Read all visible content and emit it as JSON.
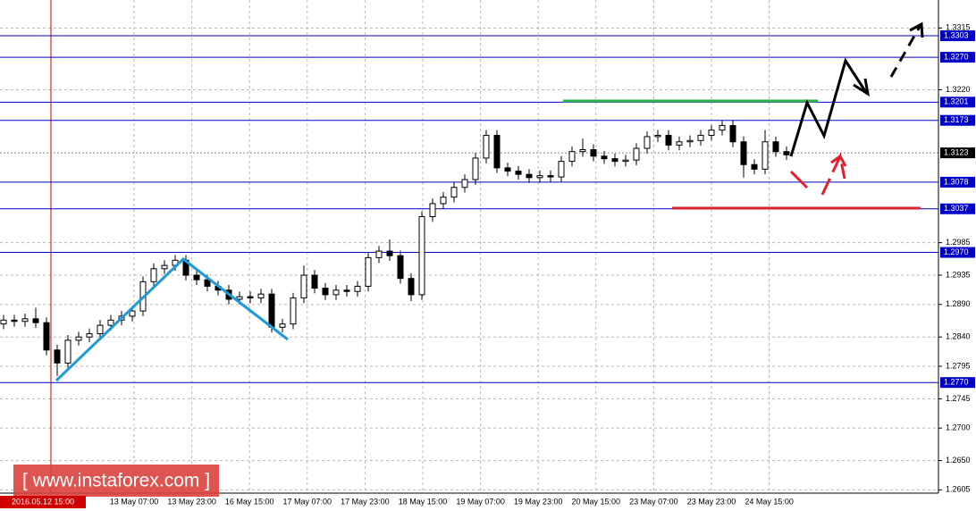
{
  "chart_data": {
    "type": "candlestick",
    "open": [
      1.286,
      1.2866,
      1.2864,
      1.2868,
      1.2862,
      1.282,
      1.28,
      1.2835,
      1.284,
      1.2845,
      1.2858,
      1.2866,
      1.2872,
      1.288,
      1.2925,
      1.2945,
      1.295,
      1.2958,
      1.2935,
      1.2928,
      1.2918,
      1.2912,
      1.2898,
      1.2902,
      1.29,
      1.2906,
      1.2855,
      1.286,
      1.29,
      1.2935,
      1.2915,
      1.2905,
      1.2912,
      1.291,
      1.2918,
      1.2962,
      1.2972,
      1.2965,
      1.293,
      1.2905,
      1.3025,
      1.3045,
      1.3055,
      1.307,
      1.3082,
      1.3115,
      1.315,
      1.31,
      1.3095,
      1.309,
      1.3085,
      1.3088,
      1.3086,
      1.311,
      1.3125,
      1.3128,
      1.3118,
      1.3114,
      1.311,
      1.3112,
      1.313,
      1.3148,
      1.315,
      1.3135,
      1.314,
      1.3142,
      1.315,
      1.3158,
      1.3165,
      1.314,
      1.3105,
      1.3098,
      1.314,
      1.3125
    ],
    "high": [
      1.2874,
      1.2874,
      1.2876,
      1.2885,
      1.287,
      1.2828,
      1.2843,
      1.2848,
      1.2853,
      1.2866,
      1.2874,
      1.288,
      1.2888,
      1.2933,
      1.2953,
      1.2958,
      1.2966,
      1.2966,
      1.2943,
      1.2936,
      1.2926,
      1.292,
      1.291,
      1.291,
      1.2914,
      1.2914,
      1.2868,
      1.2908,
      1.295,
      1.2943,
      1.2923,
      1.292,
      1.292,
      1.2926,
      1.297,
      1.298,
      1.299,
      1.2973,
      1.2938,
      1.3033,
      1.3053,
      1.3063,
      1.3078,
      1.309,
      1.3123,
      1.3158,
      1.3158,
      1.3108,
      1.3103,
      1.3098,
      1.3096,
      1.3096,
      1.3118,
      1.3133,
      1.3145,
      1.3136,
      1.3126,
      1.3122,
      1.312,
      1.3138,
      1.3156,
      1.3158,
      1.3158,
      1.3148,
      1.315,
      1.3158,
      1.3166,
      1.3173,
      1.3173,
      1.3148,
      1.3113,
      1.3158,
      1.3148,
      1.3133
    ],
    "low": [
      1.2852,
      1.2856,
      1.2856,
      1.2854,
      1.2812,
      1.278,
      1.2792,
      1.2827,
      1.2832,
      1.2837,
      1.285,
      1.2858,
      1.2864,
      1.2872,
      1.2917,
      1.2937,
      1.2942,
      1.2927,
      1.292,
      1.291,
      1.2904,
      1.289,
      1.289,
      1.2892,
      1.2892,
      1.2847,
      1.2847,
      1.2852,
      1.2892,
      1.2907,
      1.2897,
      1.2897,
      1.2902,
      1.2902,
      1.291,
      1.2954,
      1.2957,
      1.2922,
      1.2895,
      1.2897,
      1.3017,
      1.3037,
      1.3047,
      1.3062,
      1.3074,
      1.3107,
      1.3092,
      1.3087,
      1.3082,
      1.3077,
      1.3077,
      1.3078,
      1.3078,
      1.3102,
      1.3117,
      1.311,
      1.3106,
      1.3102,
      1.3102,
      1.3104,
      1.3122,
      1.314,
      1.3127,
      1.3127,
      1.3132,
      1.3134,
      1.3142,
      1.315,
      1.3132,
      1.3085,
      1.309,
      1.309,
      1.3117,
      1.3112
    ],
    "close": [
      1.2866,
      1.2864,
      1.2868,
      1.2862,
      1.282,
      1.28,
      1.2835,
      1.284,
      1.2845,
      1.2858,
      1.2866,
      1.2872,
      1.288,
      1.2925,
      1.2945,
      1.295,
      1.2958,
      1.2935,
      1.2928,
      1.2918,
      1.2912,
      1.2898,
      1.2902,
      1.29,
      1.2906,
      1.2855,
      1.286,
      1.29,
      1.2935,
      1.2915,
      1.2905,
      1.2912,
      1.291,
      1.2918,
      1.2962,
      1.2972,
      1.2965,
      1.293,
      1.2905,
      1.3025,
      1.3045,
      1.3055,
      1.307,
      1.3082,
      1.3115,
      1.315,
      1.31,
      1.3095,
      1.309,
      1.3085,
      1.3088,
      1.3086,
      1.311,
      1.3125,
      1.3128,
      1.3118,
      1.3114,
      1.311,
      1.3112,
      1.313,
      1.3148,
      1.315,
      1.3135,
      1.314,
      1.3142,
      1.315,
      1.3158,
      1.3165,
      1.314,
      1.3105,
      1.3098,
      1.314,
      1.3125,
      1.312
    ],
    "ylim": [
      1.26,
      1.3358
    ],
    "yticks": [
      1.3315,
      {
        "value": 1.322,
        "label": "1.3220"
      },
      1.2985,
      1.2935,
      {
        "value": 1.289,
        "label": "1.2890"
      },
      {
        "value": 1.284,
        "label": "1.2840"
      },
      1.2795,
      1.2745,
      {
        "value": 1.27,
        "label": "1.2700"
      },
      {
        "value": 1.265,
        "label": "1.2650"
      },
      1.2605
    ],
    "levels": [
      1.3303,
      {
        "value": 1.327,
        "label": "1.3270"
      },
      1.3201,
      1.3173,
      1.3078,
      1.3037,
      {
        "value": 1.297,
        "label": "1.2970"
      },
      {
        "value": 1.277,
        "label": "1.2770"
      }
    ],
    "current_price": 1.3123,
    "xtick_labels": [
      "13 May 07:00",
      "13 May 23:00",
      "16 May 15:00",
      "17 May 07:00",
      "17 May 23:00",
      "18 May 15:00",
      "19 May 07:00",
      "19 May 23:00",
      "20 May 15:00",
      "23 May 07:00",
      "23 May 23:00",
      "24 May 15:00"
    ],
    "crosshair_label": "2016.05.12 15:00",
    "watermark": "[ www.instaforex.com ]"
  }
}
